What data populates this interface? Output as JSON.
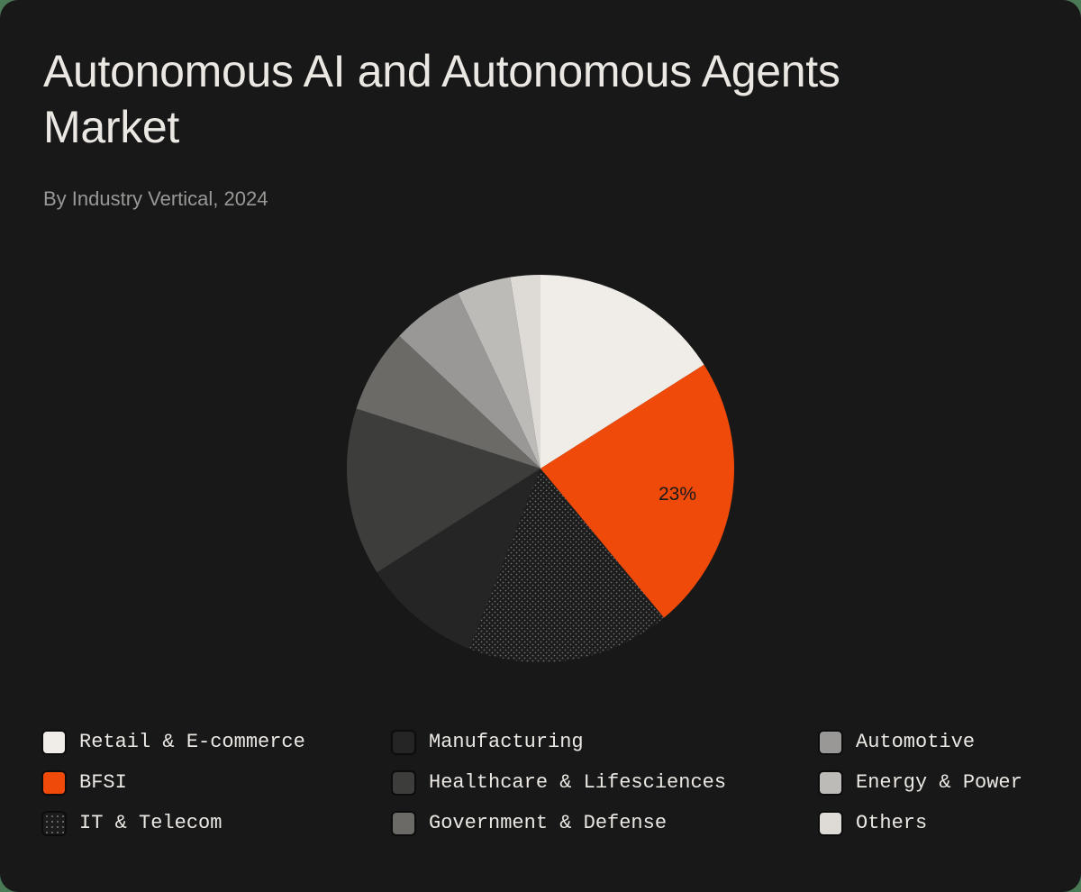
{
  "header": {
    "title": "Autonomous AI and Autonomous Agents Market",
    "subtitle": "By Industry Vertical, 2024"
  },
  "chart_data": {
    "type": "pie",
    "title": "Autonomous AI and Autonomous Agents Market",
    "subtitle": "By Industry Vertical, 2024",
    "start_angle": "12 o'clock, clockwise",
    "categories": [
      "Retail & E-commerce",
      "BFSI",
      "IT & Telecom",
      "Manufacturing",
      "Healthcare & Lifesciences",
      "Government & Defense",
      "Automotive",
      "Energy & Power",
      "Others"
    ],
    "values": [
      16,
      23,
      17,
      10,
      14,
      7,
      6,
      4.5,
      2.5
    ],
    "unit": "%",
    "colors": [
      "#f0ede9",
      "#f04a0a",
      "pattern:dots",
      "#252525",
      "#3d3d3c",
      "#6b6a67",
      "#9a9896",
      "#bdbbb7",
      "#dedad6"
    ],
    "annotations": [
      {
        "category": "BFSI",
        "text": "23%"
      }
    ],
    "legend_position": "bottom",
    "background": "#181818"
  },
  "pie": {
    "label_bfsi": "23%"
  },
  "legend": {
    "items": [
      {
        "label": "Retail & E-commerce",
        "color": "#f0ede9"
      },
      {
        "label": "BFSI",
        "color": "#f04a0a"
      },
      {
        "label": "IT & Telecom",
        "color": "dotted"
      },
      {
        "label": "Manufacturing",
        "color": "#252525"
      },
      {
        "label": "Healthcare & Lifesciences",
        "color": "#3d3d3c"
      },
      {
        "label": "Government & Defense",
        "color": "#6b6a67"
      },
      {
        "label": "Automotive",
        "color": "#9a9896"
      },
      {
        "label": "Energy & Power",
        "color": "#bdbbb7"
      },
      {
        "label": "Others",
        "color": "#dedad6"
      }
    ]
  }
}
